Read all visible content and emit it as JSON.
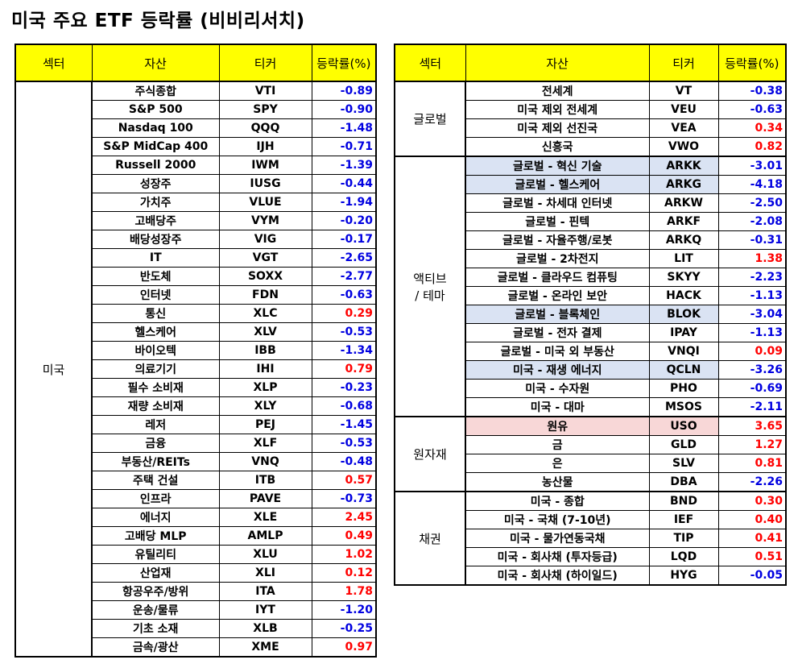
{
  "title": "미국 주요 ETF 등락률 (비비리서치)",
  "headers": {
    "sector": "섹터",
    "asset": "자산",
    "ticker": "티커",
    "change": "등락률(%)"
  },
  "left_groups": [
    {
      "sector": "미국",
      "rows": [
        {
          "asset": "주식종합",
          "ticker": "VTI",
          "change": "-0.89"
        },
        {
          "asset": "S&P 500",
          "ticker": "SPY",
          "change": "-0.90"
        },
        {
          "asset": "Nasdaq 100",
          "ticker": "QQQ",
          "change": "-1.48"
        },
        {
          "asset": "S&P MidCap 400",
          "ticker": "IJH",
          "change": "-0.71"
        },
        {
          "asset": "Russell 2000",
          "ticker": "IWM",
          "change": "-1.39"
        },
        {
          "asset": "성장주",
          "ticker": "IUSG",
          "change": "-0.44"
        },
        {
          "asset": "가치주",
          "ticker": "VLUE",
          "change": "-1.94"
        },
        {
          "asset": "고배당주",
          "ticker": "VYM",
          "change": "-0.20"
        },
        {
          "asset": "배당성장주",
          "ticker": "VIG",
          "change": "-0.17"
        },
        {
          "asset": "IT",
          "ticker": "VGT",
          "change": "-2.65"
        },
        {
          "asset": "반도체",
          "ticker": "SOXX",
          "change": "-2.77"
        },
        {
          "asset": "인터넷",
          "ticker": "FDN",
          "change": "-0.63"
        },
        {
          "asset": "통신",
          "ticker": "XLC",
          "change": "0.29"
        },
        {
          "asset": "헬스케어",
          "ticker": "XLV",
          "change": "-0.53"
        },
        {
          "asset": "바이오텍",
          "ticker": "IBB",
          "change": "-1.34"
        },
        {
          "asset": "의료기기",
          "ticker": "IHI",
          "change": "0.79"
        },
        {
          "asset": "필수 소비재",
          "ticker": "XLP",
          "change": "-0.23"
        },
        {
          "asset": "재량 소비재",
          "ticker": "XLY",
          "change": "-0.68"
        },
        {
          "asset": "레저",
          "ticker": "PEJ",
          "change": "-1.45"
        },
        {
          "asset": "금융",
          "ticker": "XLF",
          "change": "-0.53"
        },
        {
          "asset": "부동산/REITs",
          "ticker": "VNQ",
          "change": "-0.48"
        },
        {
          "asset": "주택 건설",
          "ticker": "ITB",
          "change": "0.57"
        },
        {
          "asset": "인프라",
          "ticker": "PAVE",
          "change": "-0.73"
        },
        {
          "asset": "에너지",
          "ticker": "XLE",
          "change": "2.45"
        },
        {
          "asset": "고배당 MLP",
          "ticker": "AMLP",
          "change": "0.49"
        },
        {
          "asset": "유틸리티",
          "ticker": "XLU",
          "change": "1.02"
        },
        {
          "asset": "산업재",
          "ticker": "XLI",
          "change": "0.12"
        },
        {
          "asset": "항공우주/방위",
          "ticker": "ITA",
          "change": "1.78"
        },
        {
          "asset": "운송/물류",
          "ticker": "IYT",
          "change": "-1.20"
        },
        {
          "asset": "기초 소재",
          "ticker": "XLB",
          "change": "-0.25"
        },
        {
          "asset": "금속/광산",
          "ticker": "XME",
          "change": "0.97"
        }
      ]
    }
  ],
  "right_groups": [
    {
      "sector": "글로벌",
      "rows": [
        {
          "asset": "전세계",
          "ticker": "VT",
          "change": "-0.38"
        },
        {
          "asset": "미국 제외 전세계",
          "ticker": "VEU",
          "change": "-0.63"
        },
        {
          "asset": "미국 제외 선진국",
          "ticker": "VEA",
          "change": "0.34"
        },
        {
          "asset": "신흥국",
          "ticker": "VWO",
          "change": "0.82"
        }
      ]
    },
    {
      "sector": "액티브\n/ 테마",
      "rows": [
        {
          "asset": "글로벌 - 혁신 기술",
          "ticker": "ARKK",
          "change": "-3.01",
          "highlight": "blue"
        },
        {
          "asset": "글로벌 - 헬스케어",
          "ticker": "ARKG",
          "change": "-4.18",
          "highlight": "blue"
        },
        {
          "asset": "글로벌 - 차세대 인터넷",
          "ticker": "ARKW",
          "change": "-2.50"
        },
        {
          "asset": "글로벌 - 핀텍",
          "ticker": "ARKF",
          "change": "-2.08"
        },
        {
          "asset": "글로벌 - 자율주행/로봇",
          "ticker": "ARKQ",
          "change": "-0.31"
        },
        {
          "asset": "글로벌 - 2차전지",
          "ticker": "LIT",
          "change": "1.38"
        },
        {
          "asset": "글로벌 - 클라우드 컴퓨팅",
          "ticker": "SKYY",
          "change": "-2.23"
        },
        {
          "asset": "글로벌 - 온라인 보안",
          "ticker": "HACK",
          "change": "-1.13"
        },
        {
          "asset": "글로벌 - 블록체인",
          "ticker": "BLOK",
          "change": "-3.04",
          "highlight": "blue"
        },
        {
          "asset": "글로벌 - 전자 결제",
          "ticker": "IPAY",
          "change": "-1.13"
        },
        {
          "asset": "글로벌 - 미국 외 부동산",
          "ticker": "VNQI",
          "change": "0.09"
        },
        {
          "asset": "미국 - 재생 에너지",
          "ticker": "QCLN",
          "change": "-3.26",
          "highlight": "blue"
        },
        {
          "asset": "미국 - 수자원",
          "ticker": "PHO",
          "change": "-0.69"
        },
        {
          "asset": "미국 - 대마",
          "ticker": "MSOS",
          "change": "-2.11"
        }
      ]
    },
    {
      "sector": "원자재",
      "rows": [
        {
          "asset": "원유",
          "ticker": "USO",
          "change": "3.65",
          "highlight": "red"
        },
        {
          "asset": "금",
          "ticker": "GLD",
          "change": "1.27"
        },
        {
          "asset": "은",
          "ticker": "SLV",
          "change": "0.81"
        },
        {
          "asset": "농산물",
          "ticker": "DBA",
          "change": "-2.26"
        }
      ]
    },
    {
      "sector": "채권",
      "rows": [
        {
          "asset": "미국 - 종합",
          "ticker": "BND",
          "change": "0.30"
        },
        {
          "asset": "미국 - 국채 (7-10년)",
          "ticker": "IEF",
          "change": "0.40"
        },
        {
          "asset": "미국 - 물가연동국채",
          "ticker": "TIP",
          "change": "0.41"
        },
        {
          "asset": "미국 - 회사채 (투자등급)",
          "ticker": "LQD",
          "change": "0.51"
        },
        {
          "asset": "미국 - 회사채 (하이일드)",
          "ticker": "HYG",
          "change": "-0.05"
        }
      ]
    }
  ],
  "colors": {
    "header_bg": "#ffff00",
    "negative": "#0000e0",
    "positive": "#ff0000",
    "highlight_blue": "#dae3f3",
    "highlight_red": "#f8d7d7"
  }
}
